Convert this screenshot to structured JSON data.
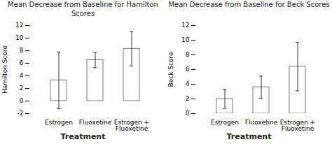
{
  "chart_data": [
    {
      "type": "bar",
      "title": "Mean Decrease from Baseline for Hamilton\nScores",
      "ylabel": "Hamilton Score",
      "xlabel": "Treatment",
      "categories": [
        "Estrogen",
        "Fluoxetine",
        "Estrogen +\nFluoxetine"
      ],
      "values": [
        3.3,
        6.5,
        8.3
      ],
      "errors": [
        4.5,
        1.2,
        2.7
      ],
      "color": "#ffffff",
      "ylim": [
        -2,
        12
      ],
      "yticks": [
        -2,
        0,
        2,
        4,
        6,
        8,
        10,
        12
      ]
    },
    {
      "type": "bar",
      "title": "Mean Decrease from Baseline for Beck Scores",
      "ylabel": "Beck Score",
      "xlabel": "Treatment",
      "categories": [
        "Estrogen",
        "Fluoxetine",
        "Estrogen +\nFluoxetine"
      ],
      "values": [
        2.0,
        3.6,
        6.4
      ],
      "errors": [
        1.3,
        1.5,
        3.3
      ],
      "color": "#ffffff",
      "ylim": [
        0,
        12
      ],
      "yticks": [
        0,
        2,
        4,
        6,
        8,
        10,
        12
      ]
    }
  ]
}
